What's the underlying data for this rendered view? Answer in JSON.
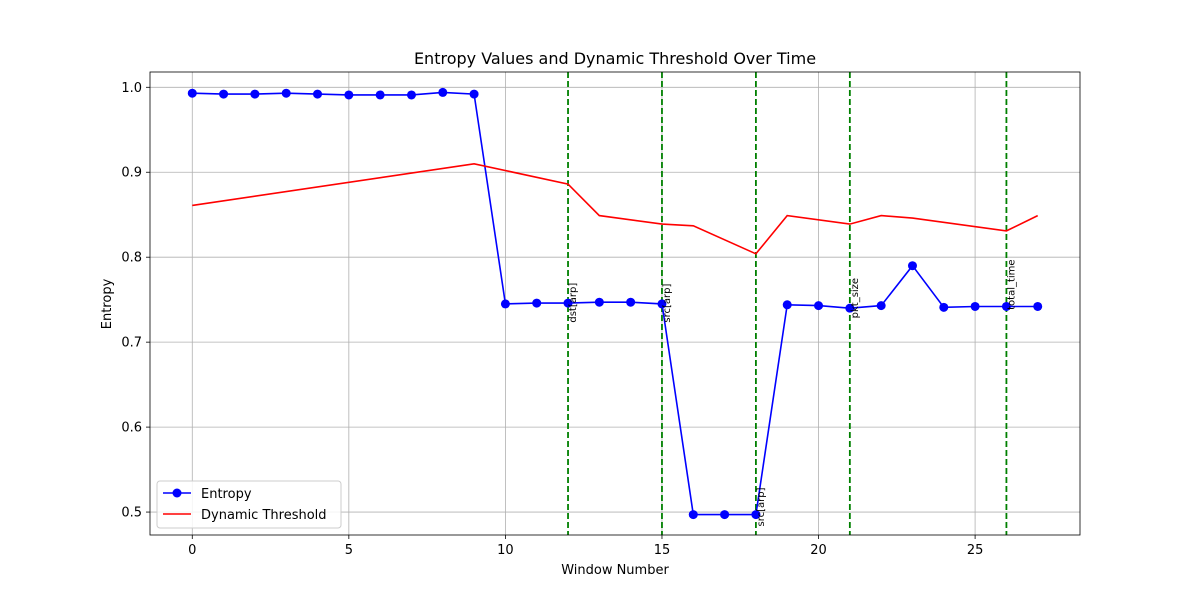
{
  "chart_data": {
    "type": "line",
    "title": "Entropy Values and Dynamic Threshold Over Time",
    "xlabel": "Window Number",
    "ylabel": "Entropy",
    "xlim": [
      -1.35,
      28.35
    ],
    "ylim": [
      0.473,
      1.018
    ],
    "x_ticks": [
      0,
      5,
      10,
      15,
      20,
      25
    ],
    "y_ticks": [
      0.5,
      0.6,
      0.7,
      0.8,
      0.9,
      1.0
    ],
    "grid": true,
    "legend_position": "lower-left",
    "x": [
      0,
      1,
      2,
      3,
      4,
      5,
      6,
      7,
      8,
      9,
      10,
      11,
      12,
      13,
      14,
      15,
      16,
      17,
      18,
      19,
      20,
      21,
      22,
      23,
      24,
      25,
      26,
      27
    ],
    "series": [
      {
        "name": "Entropy",
        "color": "#0000ff",
        "marker": "circle",
        "values": [
          0.993,
          0.992,
          0.992,
          0.993,
          0.992,
          0.991,
          0.991,
          0.991,
          0.994,
          0.992,
          0.745,
          0.746,
          0.746,
          0.747,
          0.747,
          0.745,
          0.497,
          0.497,
          0.497,
          0.744,
          0.743,
          0.74,
          0.743,
          0.79,
          0.741,
          0.742,
          0.742,
          0.742
        ]
      },
      {
        "name": "Dynamic Threshold",
        "color": "#ff0000",
        "marker": "none",
        "x": [
          0,
          9,
          12,
          13,
          15,
          16,
          18,
          19,
          21,
          22,
          23,
          26,
          27
        ],
        "values": [
          0.861,
          0.91,
          0.886,
          0.849,
          0.839,
          0.837,
          0.804,
          0.849,
          0.839,
          0.849,
          0.846,
          0.831,
          0.849
        ]
      }
    ],
    "annotations": [
      {
        "x": 12,
        "label": "dst[arp]",
        "label_y": 0.723
      },
      {
        "x": 15,
        "label": "src[arp]",
        "label_y": 0.723
      },
      {
        "x": 18,
        "label": "src[arp]",
        "label_y": 0.483
      },
      {
        "x": 21,
        "label": "pkt_size",
        "label_y": 0.728
      },
      {
        "x": 26,
        "label": "total_time",
        "label_y": 0.738
      }
    ],
    "annotation_color": "#008000"
  }
}
